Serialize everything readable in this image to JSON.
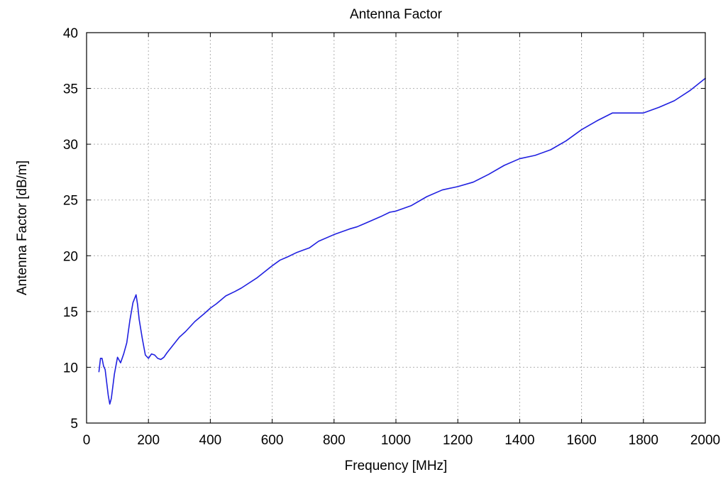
{
  "chart_data": {
    "type": "line",
    "title": "Antenna Factor",
    "xlabel": "Frequency [MHz]",
    "ylabel": "Antenna Factor [dB/m]",
    "xlim": [
      0,
      2000
    ],
    "ylim": [
      5,
      40
    ],
    "xticks": [
      0,
      200,
      400,
      600,
      800,
      1000,
      1200,
      1400,
      1600,
      1800,
      2000
    ],
    "yticks": [
      5,
      10,
      15,
      20,
      25,
      30,
      35,
      40
    ],
    "xtick_labels": [
      "0",
      "200",
      "400",
      "600",
      "800",
      "1000",
      "1200",
      "1400",
      "1600",
      "1800",
      "2000"
    ],
    "ytick_labels": [
      "5",
      "10",
      "15",
      "20",
      "25",
      "30",
      "35",
      "40"
    ],
    "grid": true,
    "series": [
      {
        "color": "#2020e0",
        "x": [
          40,
          45,
          50,
          55,
          60,
          70,
          75,
          80,
          90,
          100,
          110,
          120,
          130,
          140,
          150,
          160,
          165,
          170,
          180,
          190,
          200,
          210,
          220,
          230,
          240,
          250,
          260,
          280,
          300,
          320,
          350,
          380,
          400,
          420,
          450,
          480,
          500,
          550,
          600,
          625,
          650,
          680,
          700,
          720,
          750,
          800,
          850,
          875,
          900,
          950,
          980,
          1000,
          1050,
          1100,
          1150,
          1200,
          1250,
          1300,
          1350,
          1400,
          1450,
          1500,
          1550,
          1600,
          1650,
          1700,
          1750,
          1800,
          1850,
          1900,
          1950,
          2000
        ],
        "y": [
          9.6,
          10.8,
          10.8,
          10.1,
          9.8,
          7.5,
          6.7,
          7.2,
          9.4,
          10.9,
          10.4,
          11.2,
          12.2,
          14.2,
          15.8,
          16.5,
          15.6,
          14.3,
          12.6,
          11.1,
          10.8,
          11.2,
          11.1,
          10.8,
          10.7,
          10.9,
          11.3,
          12.0,
          12.7,
          13.2,
          14.1,
          14.8,
          15.3,
          15.7,
          16.4,
          16.8,
          17.1,
          18.0,
          19.1,
          19.6,
          19.9,
          20.3,
          20.5,
          20.7,
          21.3,
          21.9,
          22.4,
          22.6,
          22.9,
          23.5,
          23.9,
          24.0,
          24.5,
          25.3,
          25.9,
          26.2,
          26.6,
          27.3,
          28.1,
          28.7,
          29.0,
          29.5,
          30.3,
          31.3,
          32.1,
          32.8,
          32.8,
          32.8,
          33.3,
          33.9,
          34.8,
          35.9
        ]
      }
    ]
  }
}
